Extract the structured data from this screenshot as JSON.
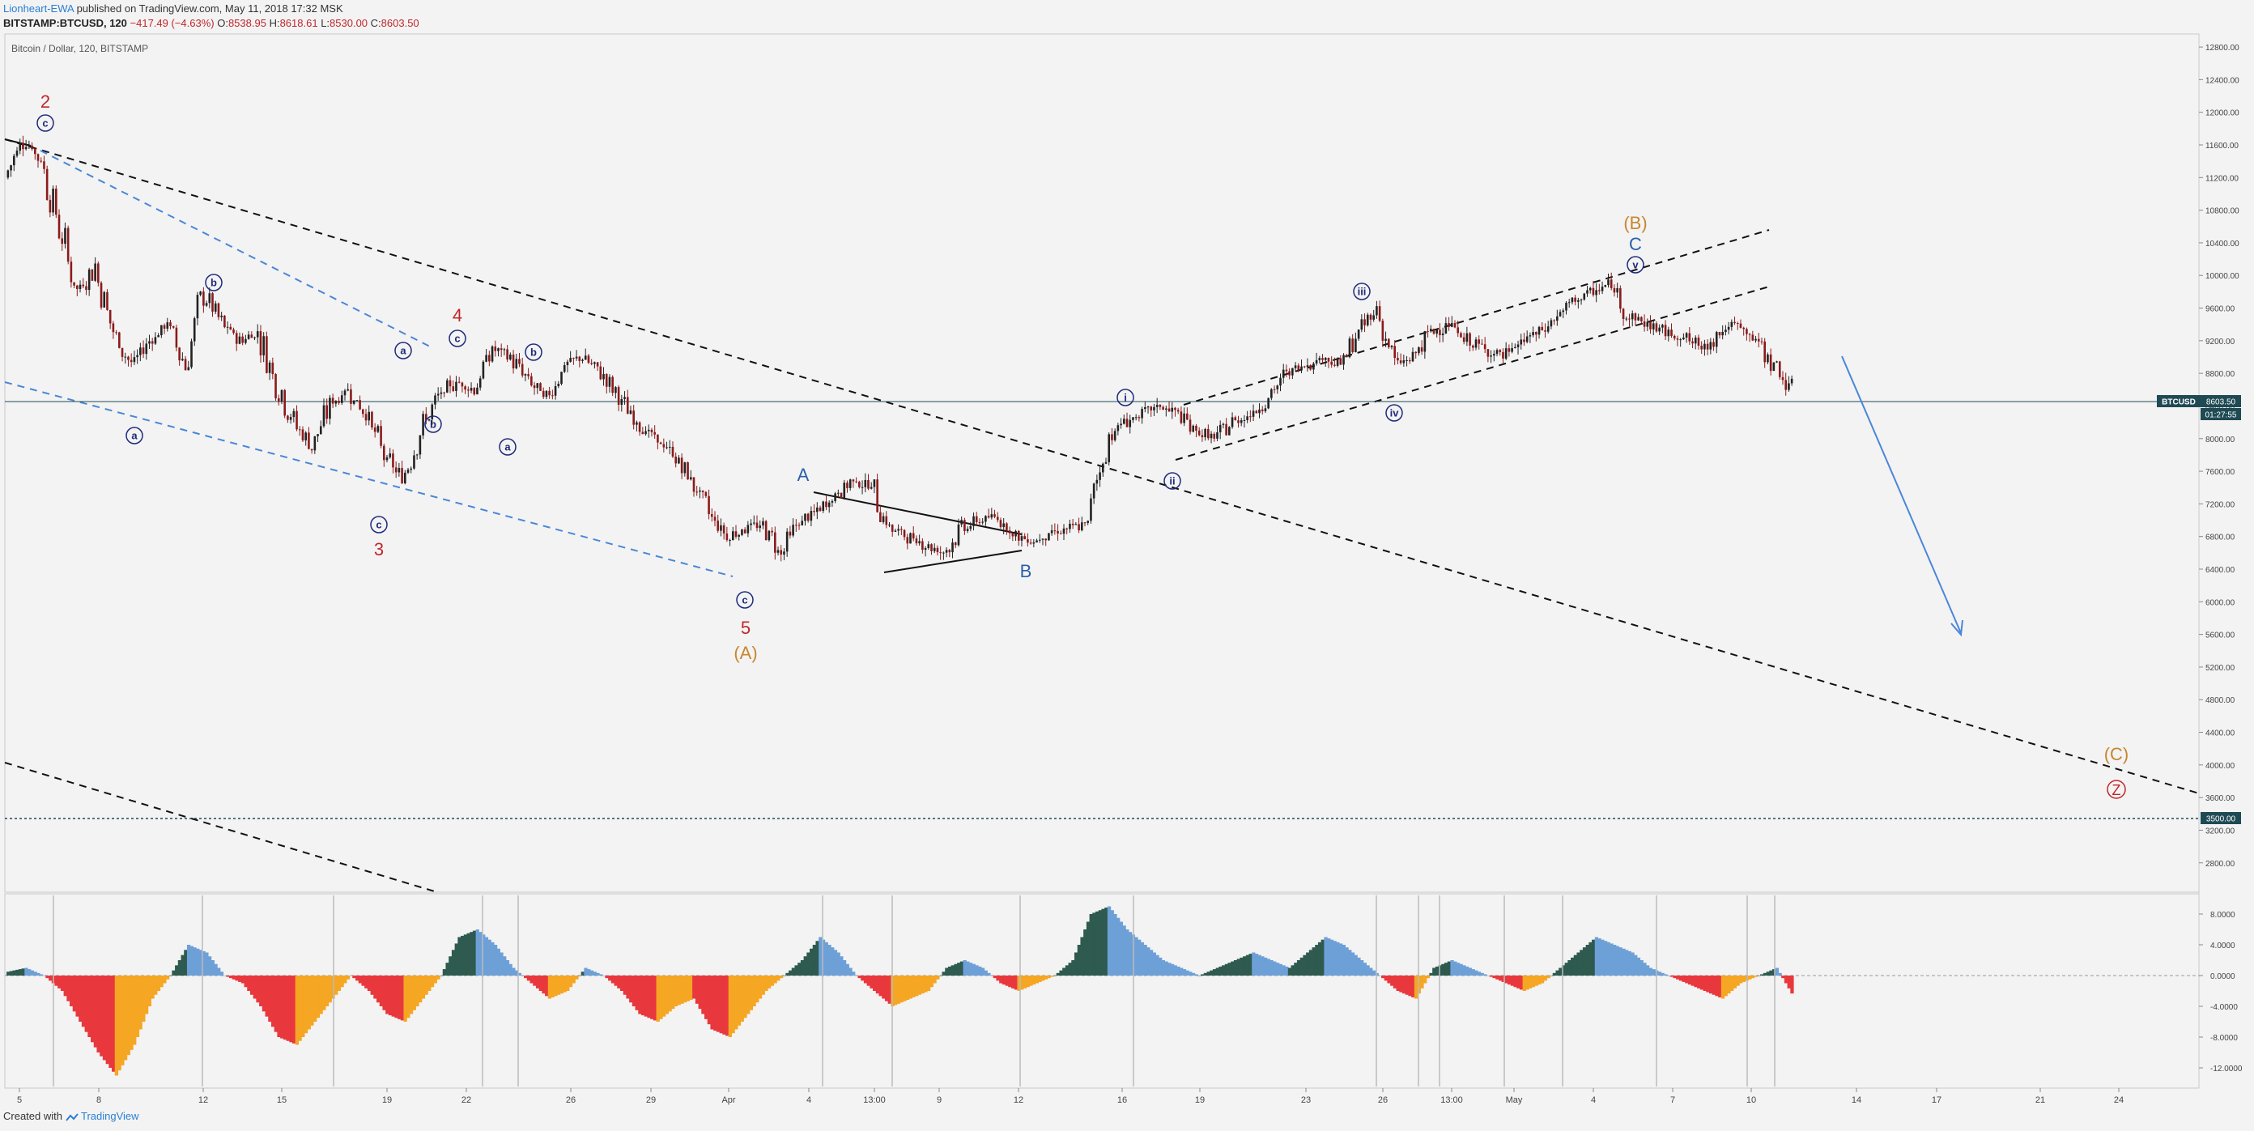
{
  "header": {
    "author": "Lionheart-EWA",
    "published_text": "published on TradingView.com, May 11, 2018 17:32 MSK",
    "symbol": "BITSTAMP:BTCUSD, 120",
    "change": "−417.49 (−4.63%)",
    "o_label": "O:",
    "o_value": "8538.95",
    "h_label": "H:",
    "h_value": "8618.61",
    "l_label": "L:",
    "l_value": "8530.00",
    "c_label": "C:",
    "c_value": "8603.50"
  },
  "footer": {
    "created_with": "Created with",
    "brand": "TradingView"
  },
  "chart_data": [
    {
      "type": "candlestick",
      "title": "Bitcoin / Dollar, 120, BITSTAMP",
      "ylim": [
        2500,
        12900
      ],
      "y_ticks": [
        "12800.00",
        "12400.00",
        "12000.00",
        "11600.00",
        "11200.00",
        "10800.00",
        "10400.00",
        "10000.00",
        "9600.00",
        "9200.00",
        "8800.00",
        "8400.00",
        "8000.00",
        "7600.00",
        "7200.00",
        "6800.00",
        "6400.00",
        "6000.00",
        "5600.00",
        "5200.00",
        "4800.00",
        "4400.00",
        "4000.00",
        "3600.00",
        "3200.00",
        "2800.00"
      ],
      "x_ticks": [
        "5",
        "8",
        "12",
        "15",
        "19",
        "22",
        "26",
        "29",
        "Apr",
        "4",
        "13:00",
        "9",
        "12",
        "16",
        "19",
        "23",
        "26",
        "13:00",
        "May",
        "4",
        "7",
        "10",
        "14",
        "17",
        "21",
        "24"
      ],
      "last_price_label": "BTCUSD",
      "last_price": "8603.50",
      "countdown": "01:27:55",
      "support_label": "3500.00",
      "support_level": 3500,
      "price_path": [
        [
          0,
          11200
        ],
        [
          1,
          11700
        ],
        [
          2,
          11400
        ],
        [
          3,
          10600
        ],
        [
          4,
          9800
        ],
        [
          5,
          10100
        ],
        [
          6,
          9300
        ],
        [
          7,
          8900
        ],
        [
          8,
          9200
        ],
        [
          9,
          9400
        ],
        [
          10,
          8900
        ],
        [
          11,
          9800
        ],
        [
          12,
          9400
        ],
        [
          13,
          9200
        ],
        [
          14,
          9300
        ],
        [
          15,
          8700
        ],
        [
          16,
          8200
        ],
        [
          17,
          7900
        ],
        [
          18,
          8400
        ],
        [
          19,
          8600
        ],
        [
          20,
          8300
        ],
        [
          21,
          7800
        ],
        [
          22,
          7500
        ],
        [
          23,
          8100
        ],
        [
          24,
          8500
        ],
        [
          25,
          8700
        ],
        [
          26,
          8600
        ],
        [
          27,
          9100
        ],
        [
          28,
          9000
        ],
        [
          29,
          8700
        ],
        [
          30,
          8500
        ],
        [
          31,
          8900
        ],
        [
          32,
          9000
        ],
        [
          33,
          8800
        ],
        [
          34,
          8500
        ],
        [
          35,
          8200
        ],
        [
          36,
          8000
        ],
        [
          37,
          7800
        ],
        [
          38,
          7500
        ],
        [
          39,
          7100
        ],
        [
          40,
          6800
        ],
        [
          41,
          6900
        ],
        [
          42,
          6950
        ],
        [
          43,
          6600
        ],
        [
          44,
          7000
        ],
        [
          45,
          7100
        ],
        [
          46,
          7300
        ],
        [
          47,
          7500
        ],
        [
          48,
          7400
        ],
        [
          49,
          6900
        ],
        [
          50,
          6800
        ],
        [
          51,
          6700
        ],
        [
          52,
          6600
        ],
        [
          53,
          6900
        ],
        [
          54,
          7000
        ],
        [
          55,
          7050
        ],
        [
          56,
          6800
        ],
        [
          57,
          6750
        ],
        [
          58,
          6850
        ],
        [
          59,
          6900
        ],
        [
          60,
          6950
        ],
        [
          61,
          8000
        ],
        [
          62,
          8200
        ],
        [
          63,
          8300
        ],
        [
          64,
          8400
        ],
        [
          65,
          8300
        ],
        [
          66,
          8100
        ],
        [
          67,
          8000
        ],
        [
          68,
          8200
        ],
        [
          69,
          8300
        ],
        [
          70,
          8500
        ],
        [
          71,
          8800
        ],
        [
          72,
          8900
        ],
        [
          73,
          9000
        ],
        [
          74,
          8900
        ],
        [
          75,
          9300
        ],
        [
          76,
          9600
        ],
        [
          77,
          8900
        ],
        [
          78,
          9000
        ],
        [
          79,
          9300
        ],
        [
          80,
          9400
        ],
        [
          81,
          9200
        ],
        [
          82,
          9100
        ],
        [
          83,
          9000
        ],
        [
          84,
          9200
        ],
        [
          85,
          9300
        ],
        [
          86,
          9500
        ],
        [
          87,
          9700
        ],
        [
          88,
          9800
        ],
        [
          89,
          9900
        ],
        [
          90,
          9500
        ],
        [
          91,
          9400
        ],
        [
          92,
          9300
        ],
        [
          93,
          9250
        ],
        [
          94,
          9100
        ],
        [
          95,
          9300
        ],
        [
          96,
          9400
        ],
        [
          97,
          9200
        ],
        [
          98,
          8900
        ],
        [
          99,
          8600
        ]
      ]
    },
    {
      "type": "area",
      "title": "",
      "ylim": [
        -14,
        10
      ],
      "y_ticks": [
        "8.0000",
        "4.0000",
        "0.0000",
        "-4.0000",
        "-8.0000",
        "-12.0000"
      ],
      "values": [
        0.5,
        1,
        0,
        -2,
        -6,
        -10,
        -13,
        -9,
        -3,
        0,
        4,
        3,
        0,
        -1,
        -4,
        -8,
        -9,
        -6,
        -3,
        0,
        -2,
        -5,
        -6,
        -3,
        0,
        5,
        6,
        4,
        1,
        -1,
        -3,
        -2,
        1,
        0,
        -2,
        -5,
        -6,
        -4,
        -3,
        -7,
        -8,
        -5,
        -2,
        0,
        2,
        5,
        3,
        0,
        -2,
        -4,
        -3,
        -2,
        1,
        2,
        1,
        -1,
        -2,
        -1,
        0,
        2,
        8,
        9,
        6,
        4,
        2,
        1,
        0,
        1,
        2,
        3,
        2,
        1,
        3,
        5,
        4,
        2,
        0,
        -2,
        -3,
        1,
        2,
        1,
        0,
        -1,
        -2,
        -1,
        1,
        3,
        5,
        4,
        3,
        1,
        0,
        -1,
        -2,
        -3,
        -1,
        0,
        1,
        -3
      ]
    }
  ],
  "annotations": {
    "red_wave": [
      "2",
      "3",
      "4",
      "5"
    ],
    "wave_A_label": "(A)",
    "wave_B_label": "(B)",
    "wave_C_label": "(C)",
    "Z_label": "Z",
    "blue_A": "A",
    "blue_B": "B",
    "blue_C": "C",
    "minor_a": "a",
    "minor_b": "b",
    "minor_c": "c",
    "roman_i": "i",
    "roman_ii": "ii",
    "roman_iii": "iii",
    "roman_iv": "iv",
    "roman_v": "v"
  },
  "colors": {
    "bg": "#f3f3f3",
    "candle_up": "#222222",
    "candle_down": "#8b1a1a",
    "wave_red": "#c0262b",
    "wave_orange": "#c8862e",
    "wave_blue": "#2a5fa8",
    "circle_navy": "#1f2a7a",
    "trend_blue": "#4a86d8",
    "osc_dark_green": "#2e5a4f",
    "osc_blue": "#6ea0d8",
    "osc_red": "#e8383d",
    "osc_orange": "#f5a623",
    "price_tag_bg": "#1f4a54"
  }
}
